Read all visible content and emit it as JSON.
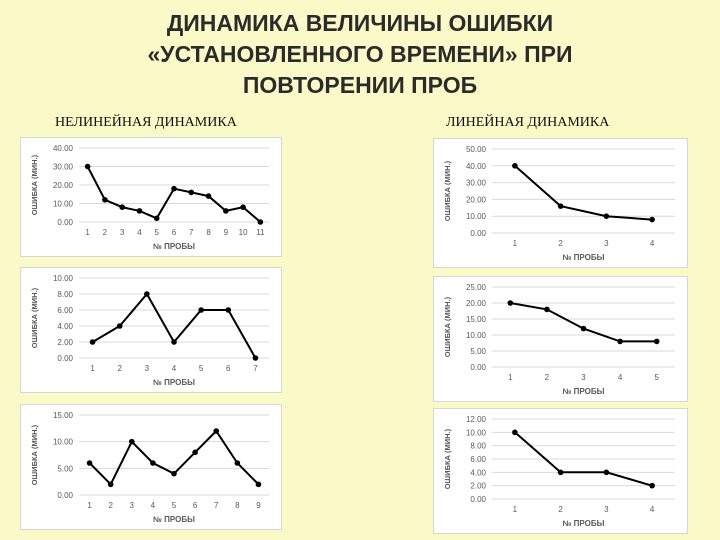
{
  "title_lines": [
    "ДИНАМИКА ВЕЛИЧИНЫ ОШИБКИ",
    "«УСТАНОВЛЕННОГО ВРЕМЕНИ» ПРИ",
    "ПОВТОРЕНИИ ПРОБ"
  ],
  "left_heading": "НЕЛИНЕЙНАЯ ДИНАМИКА",
  "right_heading": "ЛИНЕЙНАЯ ДИНАМИКА",
  "colors": {
    "background": "#fafac8",
    "line": "#000000",
    "grid": "#d9d9d9",
    "axis_text": "#595959"
  },
  "chart_data": [
    {
      "type": "line",
      "xlabel": "№ ПРОБЫ",
      "ylabel": "ОШИБКА (МИН.)",
      "categories": [
        "1",
        "2",
        "3",
        "4",
        "5",
        "6",
        "7",
        "8",
        "9",
        "10",
        "11"
      ],
      "values": [
        30,
        12,
        8,
        6,
        2,
        18,
        16,
        14,
        6,
        8,
        0
      ],
      "ylim": [
        0,
        40
      ],
      "yticks": [
        "0.00",
        "10.00",
        "20.00",
        "30.00",
        "40.00"
      ],
      "grid": true
    },
    {
      "type": "line",
      "xlabel": "№ ПРОБЫ",
      "ylabel": "ОШИБКА (МИН.)",
      "categories": [
        "1",
        "2",
        "3",
        "4",
        "5",
        "6",
        "7"
      ],
      "values": [
        2,
        4,
        8,
        2,
        6,
        6,
        0
      ],
      "ylim": [
        0,
        10
      ],
      "yticks": [
        "0.00",
        "2.00",
        "4.00",
        "6.00",
        "8.00",
        "10.00"
      ],
      "grid": true
    },
    {
      "type": "line",
      "xlabel": "№ ПРОБЫ",
      "ylabel": "ОШИБКА (МИН.)",
      "categories": [
        "1",
        "2",
        "3",
        "4",
        "5",
        "6",
        "7",
        "8",
        "9"
      ],
      "values": [
        6,
        2,
        10,
        6,
        4,
        8,
        12,
        6,
        2
      ],
      "ylim": [
        0,
        15
      ],
      "yticks": [
        "0.00",
        "5.00",
        "10.00",
        "15.00"
      ],
      "grid": true
    },
    {
      "type": "line",
      "xlabel": "№ ПРОБЫ",
      "ylabel": "ОШИБКА (МИН.)",
      "categories": [
        "1",
        "2",
        "3",
        "4"
      ],
      "values": [
        40,
        16,
        10,
        8
      ],
      "ylim": [
        0,
        50
      ],
      "yticks": [
        "0.00",
        "10.00",
        "20.00",
        "30.00",
        "40.00",
        "50.00"
      ],
      "grid": true
    },
    {
      "type": "line",
      "xlabel": "№ ПРОБЫ",
      "ylabel": "ОШИБКА (МИН.)",
      "categories": [
        "1",
        "2",
        "3",
        "4",
        "5"
      ],
      "values": [
        20,
        18,
        12,
        8,
        8
      ],
      "ylim": [
        0,
        25
      ],
      "yticks": [
        "0.00",
        "5.00",
        "10.00",
        "15.00",
        "20.00",
        "25.00"
      ],
      "grid": true
    },
    {
      "type": "line",
      "xlabel": "№ ПРОБЫ",
      "ylabel": "ОШИБКА (МИН.)",
      "categories": [
        "1",
        "2",
        "3",
        "4"
      ],
      "values": [
        10,
        4,
        4,
        2
      ],
      "ylim": [
        0,
        12
      ],
      "yticks": [
        "0.00",
        "2.00",
        "4.00",
        "6.00",
        "8.00",
        "10.00",
        "12.00"
      ],
      "grid": true
    }
  ]
}
